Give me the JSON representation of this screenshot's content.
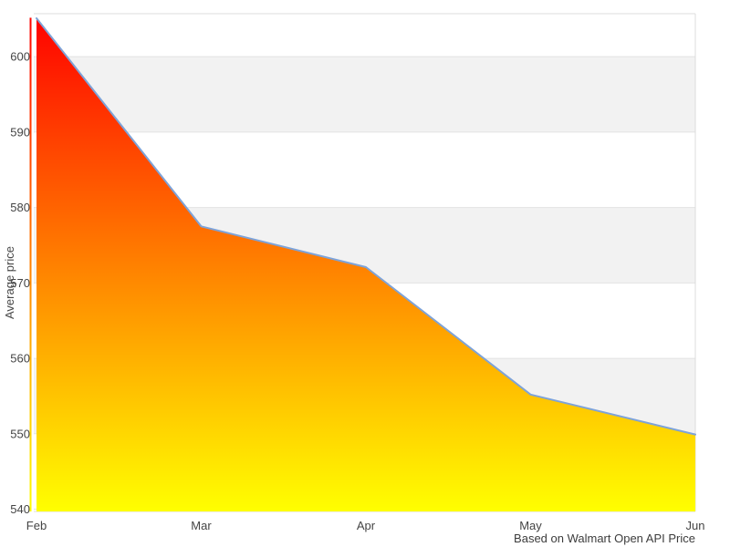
{
  "chart_data": {
    "type": "area",
    "title": "",
    "categories": [
      "Feb",
      "Mar",
      "Apr",
      "May",
      "Jun"
    ],
    "values": [
      605.1,
      577.5,
      572.1,
      555.2,
      549.9
    ],
    "series_name": "Average price",
    "xlabel": "",
    "ylabel": "Average price",
    "yticks": [
      600,
      590,
      580,
      570,
      560,
      550,
      540
    ],
    "ylim": [
      539.7,
      605.7
    ],
    "grid": "horizontal alternating bands, gray stripes between 600-590, 580-570, 560-550",
    "legend": "none",
    "caption": "Based on Walmart Open API Price"
  },
  "colors": {
    "area_gradient_top": "#ff0000",
    "area_gradient_bottom": "#ffff00",
    "line": "#7ea3d8",
    "band_gray": "#f2f2f2",
    "gridline": "#e3e3e3",
    "plot_border": "#dcdcdc",
    "tick_text": "#444444",
    "caption_text": "#3c3c3c",
    "background": "#ffffff"
  }
}
